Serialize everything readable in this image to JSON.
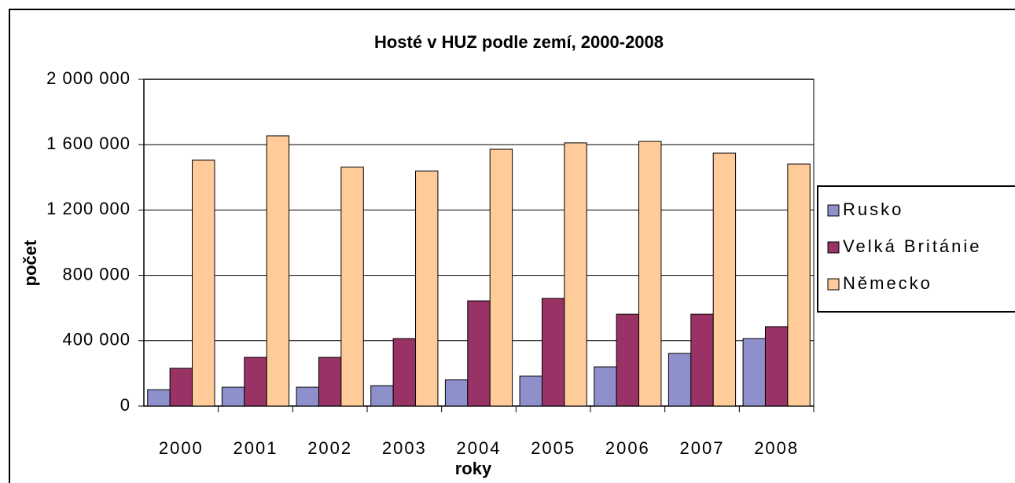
{
  "chart_data": {
    "type": "bar",
    "title": "Hosté v HUZ podle zemí, 2000-2008",
    "x_label": "roky",
    "y_label": "počet",
    "categories": [
      "2000",
      "2001",
      "2002",
      "2003",
      "2004",
      "2005",
      "2006",
      "2007",
      "2008"
    ],
    "series": [
      {
        "name": "Rusko",
        "color": "#8e90cc",
        "values": [
          100000,
          115000,
          115000,
          125000,
          160000,
          183000,
          240000,
          322000,
          413000
        ]
      },
      {
        "name": "Velká Británie",
        "color": "#993366",
        "values": [
          231000,
          298000,
          298000,
          413000,
          644000,
          659000,
          562000,
          562000,
          486000
        ]
      },
      {
        "name": "Německo",
        "color": "#ffcc99",
        "values": [
          1505000,
          1654000,
          1462000,
          1438000,
          1572000,
          1611000,
          1620000,
          1548000,
          1481000
        ]
      }
    ],
    "ylim": [
      0,
      2000000
    ],
    "yticks": [
      0,
      {
        "value": 400000,
        "label": "400 000"
      },
      {
        "value": 800000,
        "label": "800 000"
      },
      {
        "value": 1200000,
        "label": "1 200 000"
      },
      {
        "value": 1600000,
        "label": "1 600 000"
      },
      {
        "value": 2000000,
        "label": "2 000 000"
      }
    ],
    "grid": true,
    "legend": "right"
  }
}
